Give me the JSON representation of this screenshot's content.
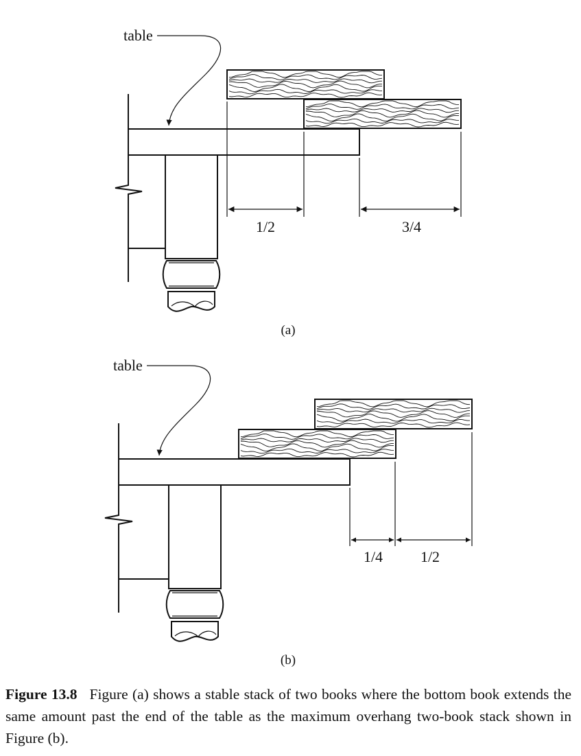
{
  "figure_a": {
    "table_label": "table",
    "dim_left": "1/2",
    "dim_right": "3/4",
    "sublabel": "(a)"
  },
  "figure_b": {
    "table_label": "table",
    "dim_left": "1/4",
    "dim_right": "1/2",
    "sublabel": "(b)"
  },
  "caption": {
    "number": "Figure 13.8",
    "text": "Figure (a) shows a stable stack of two books where the bottom book extends the same amount past the end of the table as the maximum overhang two-book stack shown in Figure (b)."
  }
}
